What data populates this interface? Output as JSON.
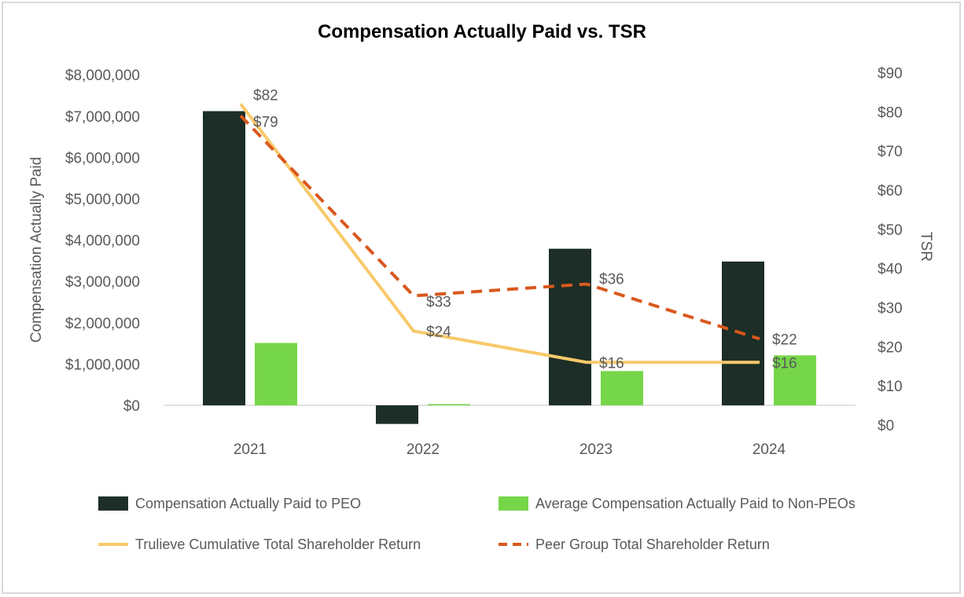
{
  "chart_data": {
    "type": "bar",
    "title": "Compensation Actually Paid vs. TSR",
    "categories": [
      "2021",
      "2022",
      "2023",
      "2024"
    ],
    "y_left": {
      "label": "Compensation Actually Paid",
      "range": [
        -500000,
        8000000
      ],
      "ticks": [
        0,
        1000000,
        2000000,
        3000000,
        4000000,
        5000000,
        6000000,
        7000000,
        8000000
      ],
      "tick_labels": [
        "$0",
        "$1,000,000",
        "$2,000,000",
        "$3,000,000",
        "$4,000,000",
        "$5,000,000",
        "$6,000,000",
        "$7,000,000",
        "$8,000,000"
      ]
    },
    "y_right": {
      "label": "TSR",
      "range": [
        0,
        90
      ],
      "ticks": [
        0,
        10,
        20,
        30,
        40,
        50,
        60,
        70,
        80,
        90
      ],
      "tick_labels": [
        "$0",
        "$10",
        "$20",
        "$30",
        "$40",
        "$50",
        "$60",
        "$70",
        "$80",
        "$90"
      ]
    },
    "series": [
      {
        "name": "Compensation Actually Paid to PEO",
        "type": "bar",
        "axis": "left",
        "color": "#1c2e27",
        "values": [
          7120000,
          -450000,
          3790000,
          3480000
        ]
      },
      {
        "name": "Average Compensation Actually Paid to Non-PEOs",
        "type": "bar",
        "axis": "left",
        "color": "#76d64a",
        "values": [
          1510000,
          30000,
          830000,
          1210000
        ]
      },
      {
        "name": "Trulieve Cumulative Total Shareholder Return",
        "type": "line",
        "axis": "right",
        "color": "#f8c96a",
        "values": [
          82,
          24,
          16,
          16
        ],
        "labels": [
          "$82",
          "$24",
          "$16",
          "$16"
        ]
      },
      {
        "name": "Peer Group Total Shareholder Return",
        "type": "line",
        "axis": "right",
        "color": "#d9581d",
        "dashed": true,
        "values": [
          79,
          33,
          36,
          22
        ],
        "labels": [
          "$79",
          "$33",
          "$36",
          "$22"
        ]
      }
    ],
    "legend_position": "bottom"
  }
}
